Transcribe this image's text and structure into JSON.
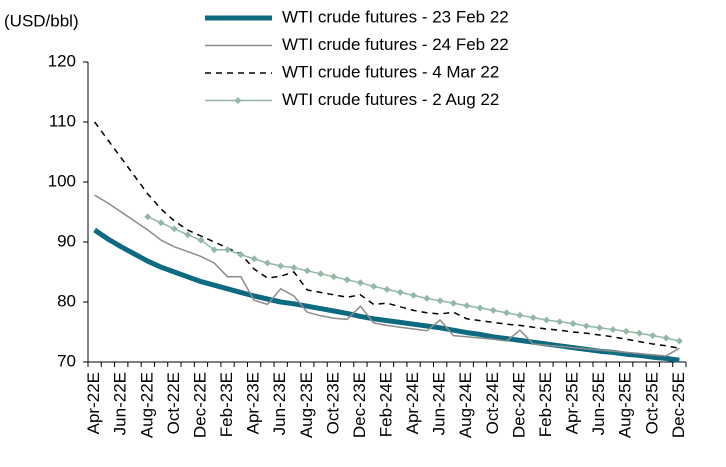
{
  "chart_data": {
    "type": "line",
    "y_label": "(USD/bbl)",
    "categories": [
      "Apr-22E",
      null,
      "Jun-22E",
      null,
      "Aug-22E",
      null,
      "Oct-22E",
      null,
      "Dec-22E",
      null,
      "Feb-23E",
      null,
      "Apr-23E",
      null,
      "Jun-23E",
      null,
      "Aug-23E",
      null,
      "Oct-23E",
      null,
      "Dec-23E",
      null,
      "Feb-24E",
      null,
      "Apr-24E",
      null,
      "Jun-24E",
      null,
      "Aug-24E",
      null,
      "Oct-24E",
      null,
      "Dec-24E",
      null,
      "Feb-25E",
      null,
      "Apr-25E",
      null,
      "Jun-25E",
      null,
      "Aug-25E",
      null,
      "Oct-25E",
      null,
      "Dec-25E"
    ],
    "series": [
      {
        "name": "WTI crude futures - 23 Feb 22",
        "color": "#0e6a80",
        "line_width": 5,
        "line_style": "solid",
        "values": [
          92,
          90.5,
          89.2,
          88,
          86.8,
          85.8,
          85,
          84.2,
          83.4,
          82.8,
          82.2,
          81.6,
          81,
          80.5,
          80,
          79.7,
          79.3,
          78.9,
          78.5,
          78.1,
          77.6,
          77.2,
          76.9,
          76.6,
          76.3,
          76,
          75.7,
          75.3,
          74.9,
          74.6,
          74.2,
          73.9,
          73.6,
          73.3,
          73,
          72.7,
          72.4,
          72.1,
          71.8,
          71.6,
          71.3,
          71.1,
          70.8,
          70.6,
          70.3
        ]
      },
      {
        "name": "WTI crude futures - 24 Feb 22",
        "color": "#8c8c8c",
        "line_width": 1.5,
        "line_style": "solid",
        "values": [
          97.8,
          96.5,
          95,
          93.5,
          92,
          90.3,
          89.2,
          88.4,
          87.6,
          86.5,
          84.2,
          84.2,
          80.3,
          79.6,
          82.2,
          81,
          78.3,
          77.7,
          77.3,
          77.1,
          79.3,
          76.5,
          76.1,
          75.8,
          75.5,
          75.2,
          77,
          74.4,
          74.2,
          74,
          73.8,
          73.5,
          75.3,
          73,
          72.8,
          72.6,
          72.4,
          72.2,
          72,
          71.8,
          71.6,
          71.4,
          71.2,
          71,
          72.3
        ]
      },
      {
        "name": "WTI crude futures - 4 Mar 22",
        "color": "#000000",
        "line_width": 1.5,
        "line_style": "dashed",
        "values": [
          110,
          107,
          104,
          101,
          98,
          95.5,
          93.5,
          92,
          91,
          90,
          89,
          88,
          85.5,
          84,
          84.3,
          85,
          82,
          81.6,
          81.2,
          80.8,
          81.2,
          79.6,
          79.8,
          79.2,
          78.6,
          78.2,
          78,
          78.3,
          77.2,
          76.9,
          76.6,
          76.3,
          76.1,
          75.8,
          75.5,
          75.3,
          75,
          74.8,
          74.5,
          74.2,
          73.8,
          73.4,
          73,
          72.7,
          72.3
        ]
      },
      {
        "name": "WTI crude futures - 2 Aug 22",
        "color": "#94b8a6",
        "line_width": 1.5,
        "line_style": "solid",
        "marker": "diamond",
        "values": [
          null,
          null,
          null,
          null,
          94.2,
          93.2,
          92.2,
          91.2,
          90.3,
          88.7,
          88.7,
          87.9,
          87.2,
          86.5,
          86,
          85.7,
          85.2,
          84.7,
          84.2,
          83.7,
          83.2,
          82.6,
          82.1,
          81.6,
          81.1,
          80.6,
          80.2,
          79.8,
          79.4,
          79,
          78.6,
          78.2,
          77.8,
          77.4,
          77,
          76.7,
          76.4,
          76,
          75.7,
          75.4,
          75.1,
          74.8,
          74.4,
          74,
          73.5
        ]
      }
    ],
    "ylim": [
      70,
      120
    ],
    "yticks": [
      70,
      80,
      90,
      100,
      110,
      120
    ],
    "grid": false
  }
}
